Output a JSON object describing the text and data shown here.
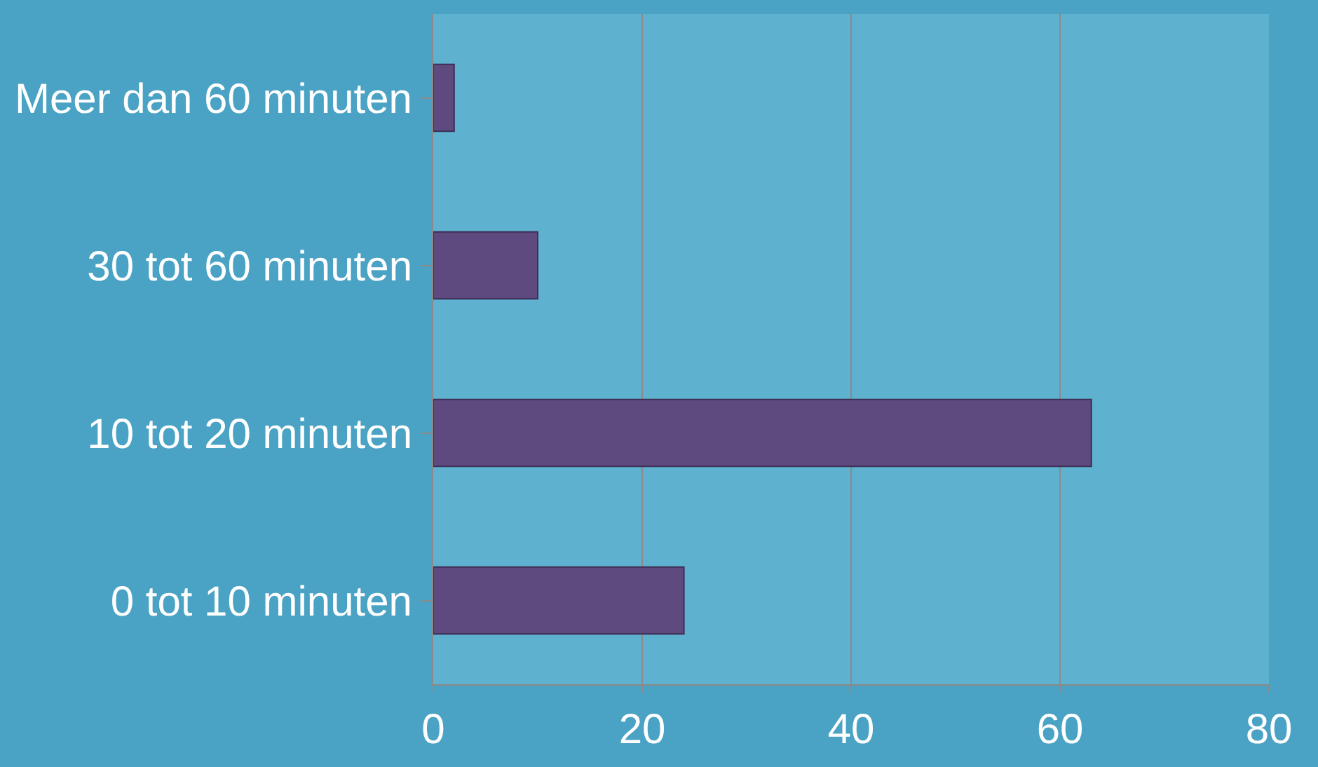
{
  "chart_data": {
    "type": "bar",
    "orientation": "horizontal",
    "categories": [
      "Meer dan 60 minuten",
      "30 tot 60 minuten",
      "10 tot 20 minuten",
      "0 tot 10 minuten"
    ],
    "values": [
      2,
      10,
      63,
      24
    ],
    "color": "#5e4a7e",
    "xlim": [
      0,
      80
    ],
    "xticks": [
      0,
      20,
      40,
      60,
      80
    ],
    "grid": "x"
  }
}
